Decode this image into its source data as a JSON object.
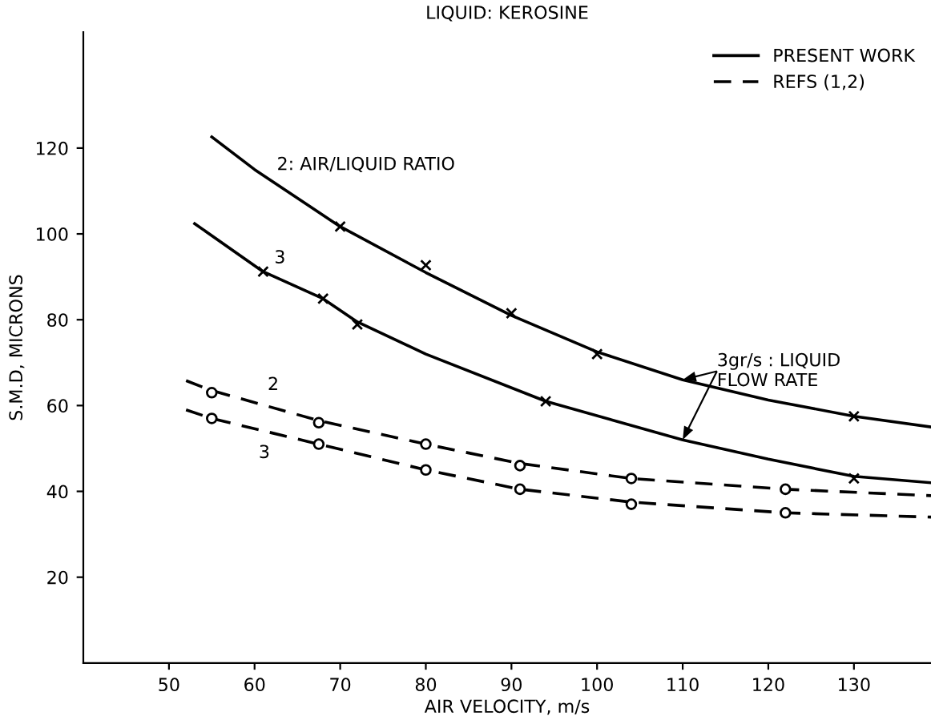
{
  "chart_data": {
    "type": "line",
    "title": "LIQUID: KEROSINE",
    "xlabel": "AIR VELOCITY, m/s",
    "ylabel": "S.M.D, MICRONS",
    "xlim": [
      40,
      139
    ],
    "ylim": [
      0,
      147
    ],
    "xticks": [
      50,
      60,
      70,
      80,
      90,
      100,
      110,
      120,
      130
    ],
    "yticks": [
      20,
      40,
      60,
      80,
      100,
      120
    ],
    "grid": false,
    "legend": "top right",
    "series": [
      {
        "name": "PRESENT WORK",
        "line_style": "solid",
        "marker": "none",
        "color": "#000000",
        "x": [
          55,
          60,
          70,
          80,
          90,
          100,
          110,
          120,
          130,
          139
        ],
        "values": [
          122.6,
          115,
          101.7,
          91,
          81,
          72.5,
          66,
          61.3,
          57.5,
          55
        ]
      },
      {
        "line_style": "solid",
        "marker": "none",
        "color": "#000000",
        "x": [
          53,
          61,
          68,
          72,
          80,
          94,
          110,
          120,
          130,
          139
        ],
        "values": [
          102.4,
          91.2,
          84.9,
          79.5,
          72,
          61,
          52,
          47.5,
          43.5,
          42
        ]
      },
      {
        "name": "REFS (1,2)",
        "line_style": "dashed",
        "marker": "none",
        "color": "#000000",
        "x": [
          52,
          55,
          67.5,
          80,
          91,
          104,
          122,
          139
        ],
        "values": [
          65.8,
          63.5,
          56.5,
          51,
          46.5,
          43,
          40.5,
          39
        ]
      },
      {
        "line_style": "dashed",
        "marker": "none",
        "color": "#000000",
        "x": [
          52,
          55,
          67.5,
          80,
          91,
          104,
          122,
          139
        ],
        "values": [
          59,
          57,
          51,
          45,
          40.5,
          37.5,
          35,
          34
        ]
      },
      {
        "type": "scatter",
        "marker": "cross",
        "color": "#000000",
        "x": [
          70,
          80,
          90,
          100,
          130
        ],
        "values": [
          101.7,
          92.7,
          81.5,
          72,
          57.5
        ]
      },
      {
        "type": "scatter",
        "marker": "cross",
        "color": "#000000",
        "x": [
          61,
          68,
          72,
          94,
          130
        ],
        "values": [
          91.2,
          84.9,
          78.9,
          61,
          43
        ]
      },
      {
        "type": "scatter",
        "marker": "circle",
        "color": "#000000",
        "x": [
          55,
          67.5,
          80,
          91,
          104,
          122
        ],
        "values": [
          63,
          56,
          51,
          46,
          43,
          40.5
        ]
      },
      {
        "type": "scatter",
        "marker": "circle",
        "color": "#000000",
        "x": [
          55,
          67.5,
          80,
          91,
          104,
          122
        ],
        "values": [
          57,
          51,
          45,
          40.5,
          37,
          35
        ]
      }
    ],
    "annotations": [
      {
        "text": "2: AIR/LIQUID RATIO",
        "x": 60,
        "y": 115
      },
      {
        "text": "3",
        "x": 61,
        "y": 91.2
      },
      {
        "text": "2",
        "x": 61,
        "y": 60.1
      },
      {
        "text": "3",
        "x": 61,
        "y": 54.1
      },
      {
        "text": "3gr/s : LIQUID\nFLOW RATE",
        "x": 110,
        "y": 66
      }
    ]
  }
}
